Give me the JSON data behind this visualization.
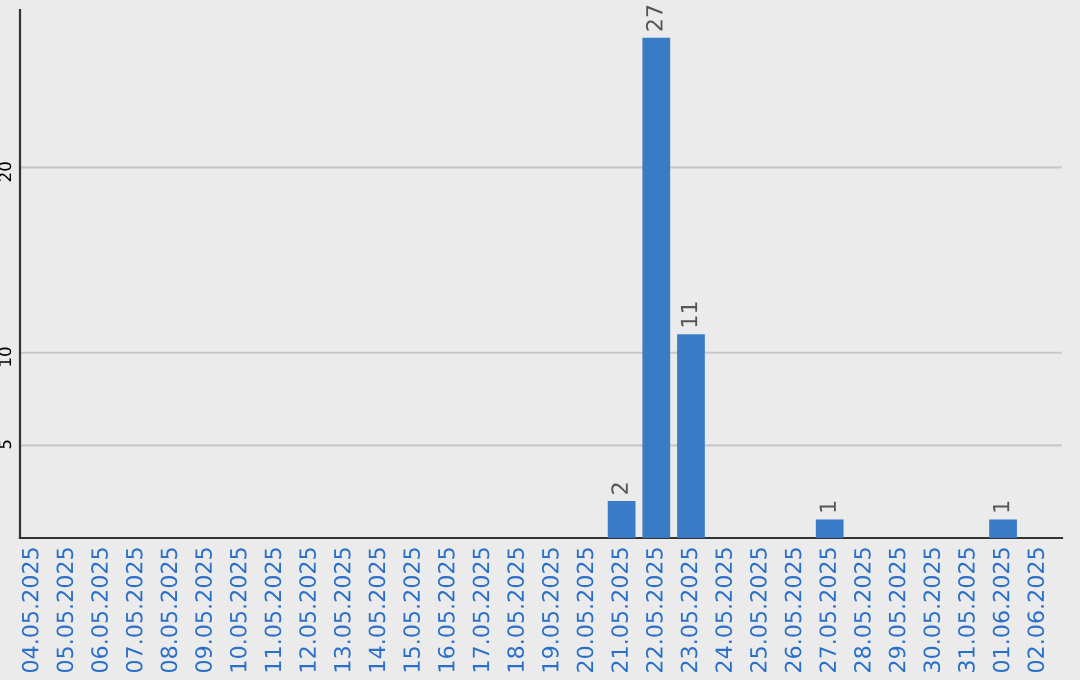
{
  "chart_data": {
    "type": "bar",
    "categories": [
      "04.05.2025",
      "05.05.2025",
      "06.05.2025",
      "07.05.2025",
      "08.05.2025",
      "09.05.2025",
      "10.05.2025",
      "11.05.2025",
      "12.05.2025",
      "13.05.2025",
      "14.05.2025",
      "15.05.2025",
      "16.05.2025",
      "17.05.2025",
      "18.05.2025",
      "19.05.2025",
      "20.05.2025",
      "21.05.2025",
      "22.05.2025",
      "23.05.2025",
      "24.05.2025",
      "25.05.2025",
      "26.05.2025",
      "27.05.2025",
      "28.05.2025",
      "29.05.2025",
      "30.05.2025",
      "31.05.2025",
      "01.06.2025",
      "02.06.2025"
    ],
    "values": [
      0,
      0,
      0,
      0,
      0,
      0,
      0,
      0,
      0,
      0,
      0,
      0,
      0,
      0,
      0,
      0,
      0,
      2,
      27,
      11,
      0,
      0,
      0,
      1,
      0,
      0,
      0,
      0,
      1,
      0
    ],
    "value_labels": [
      null,
      null,
      null,
      null,
      null,
      null,
      null,
      null,
      null,
      null,
      null,
      null,
      null,
      null,
      null,
      null,
      null,
      "2",
      "27",
      "11",
      null,
      null,
      null,
      "1",
      null,
      null,
      null,
      null,
      "1",
      null
    ],
    "color": "#3a7bc8",
    "ylim": [
      0,
      28.5
    ],
    "yticks": [
      5,
      10,
      20
    ],
    "grid": "y"
  }
}
